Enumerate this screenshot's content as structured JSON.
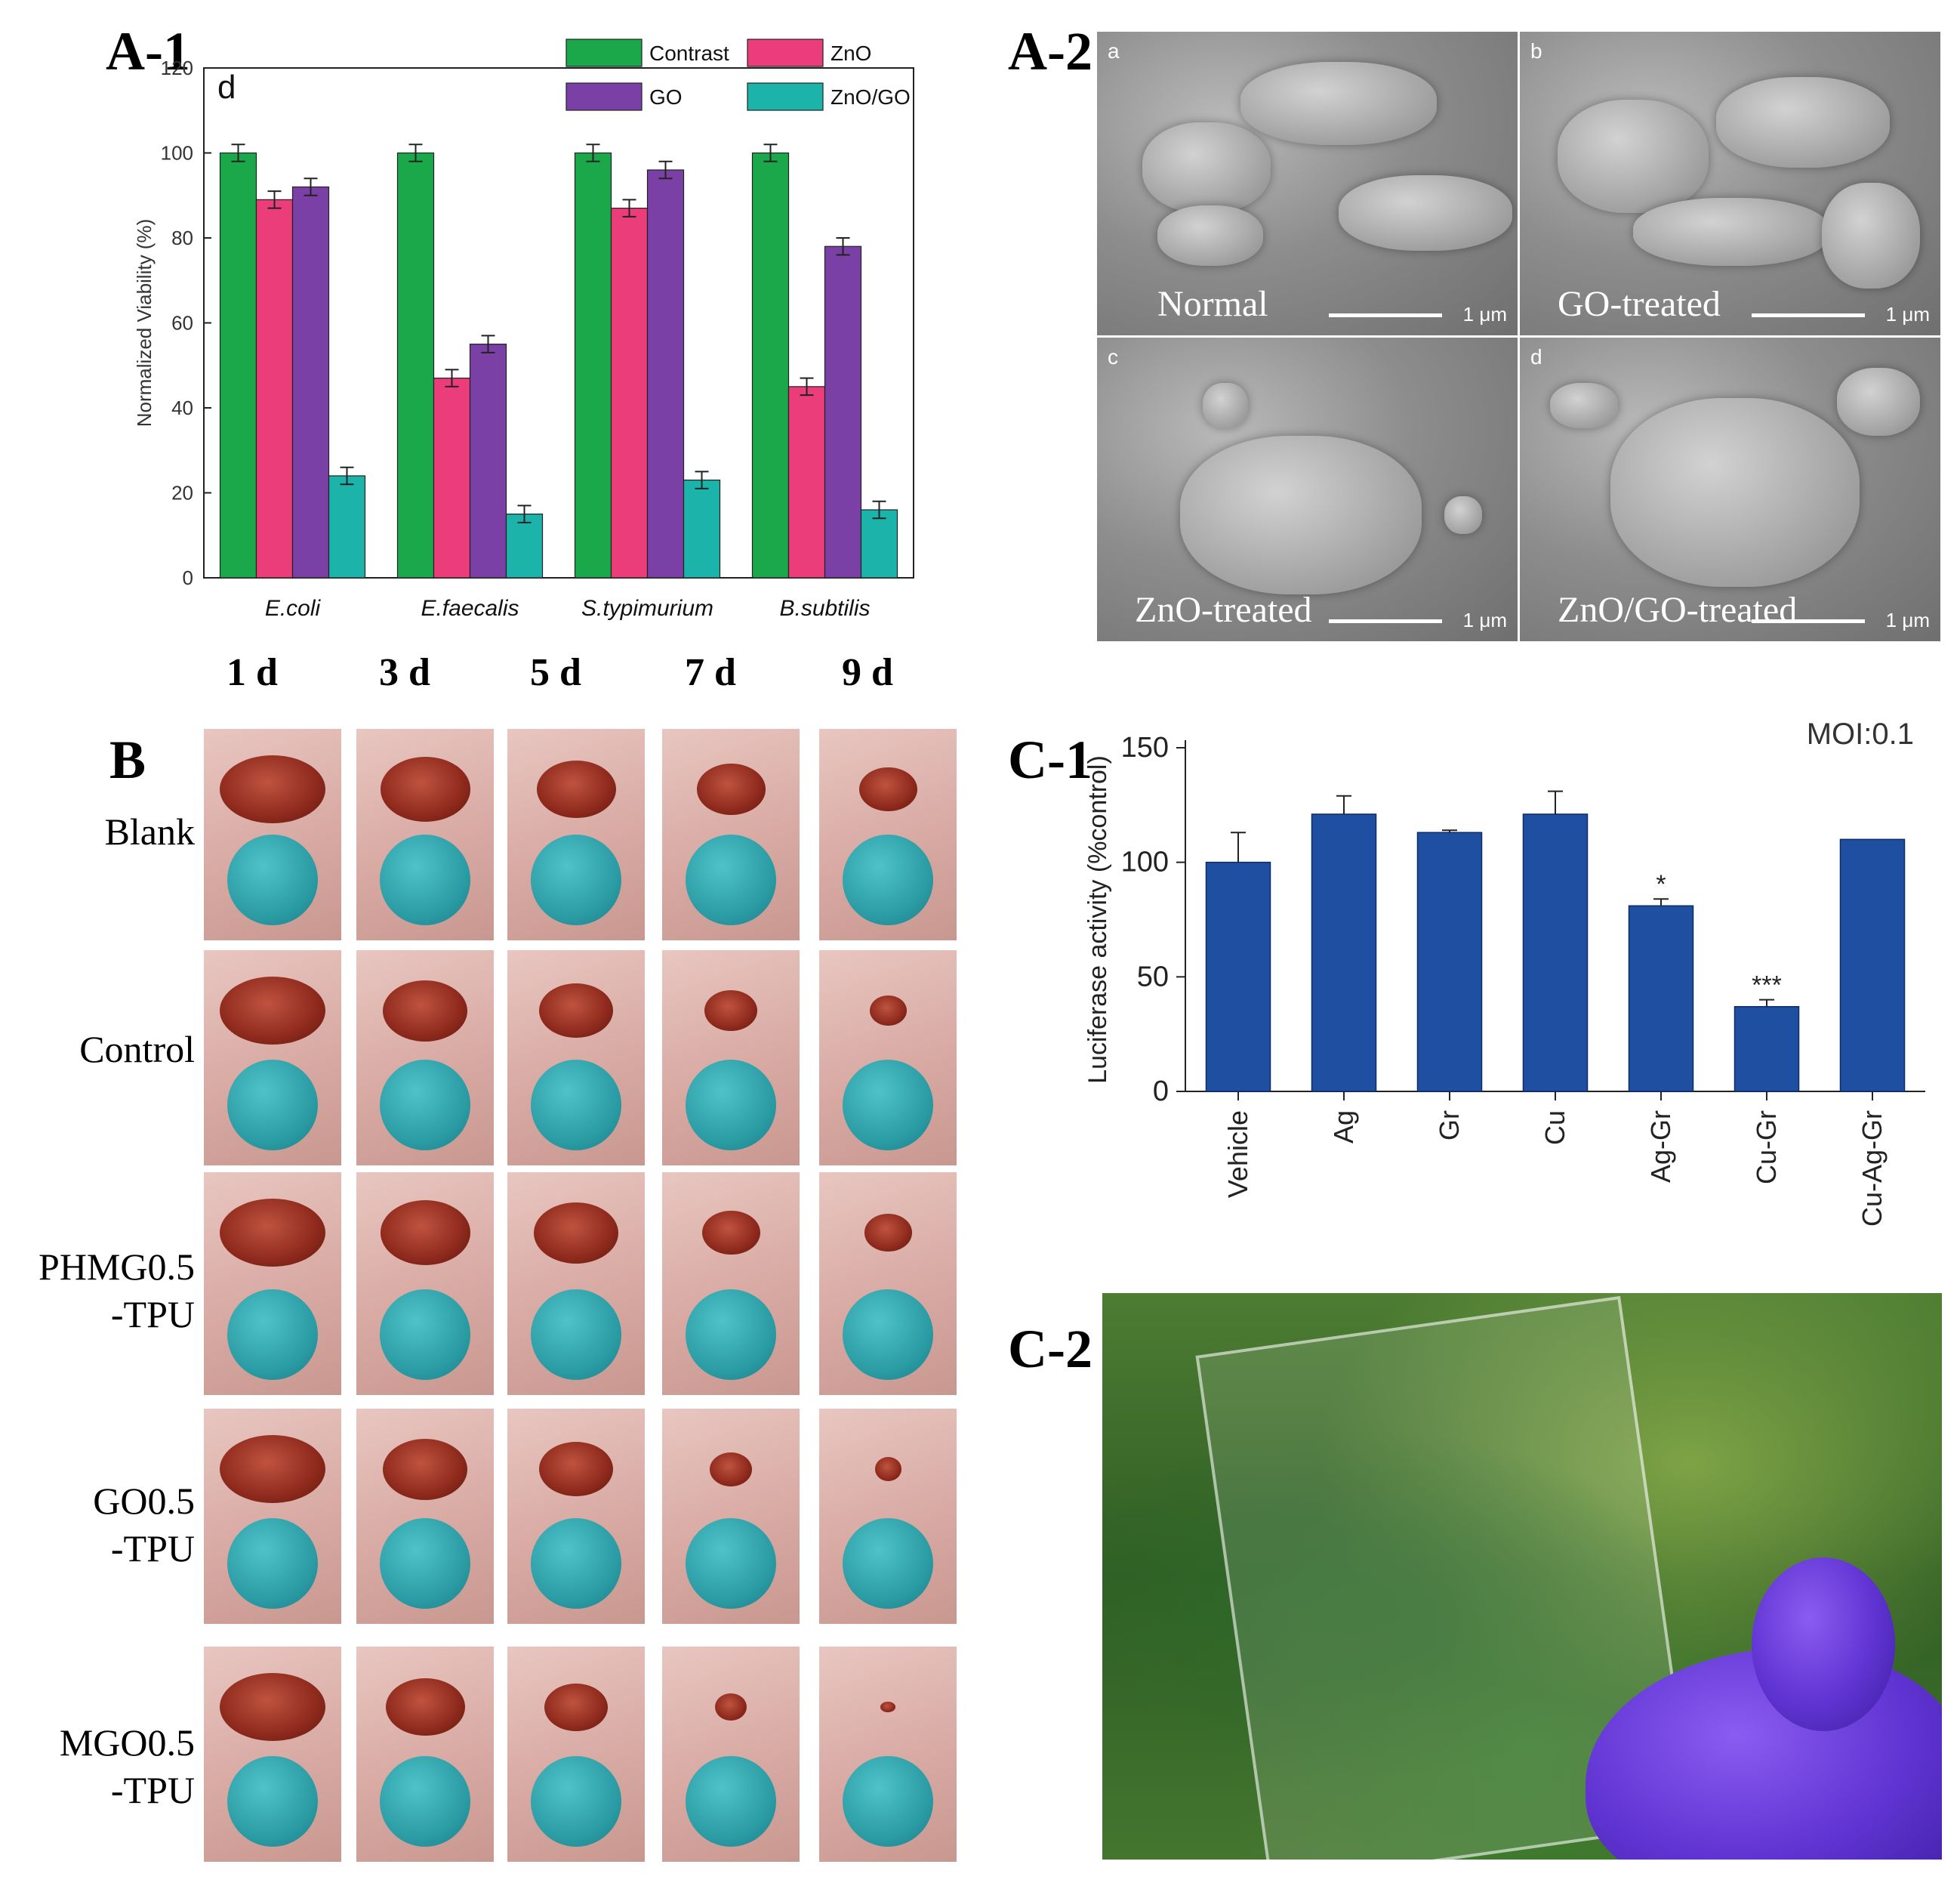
{
  "panels": {
    "a1": "A-1",
    "a2": "A-2",
    "b": "B",
    "c1": "C-1",
    "c2": "C-2"
  },
  "chart_data": [
    {
      "id": "A-1",
      "type": "bar",
      "subplot_letter": "d",
      "categories": [
        "E.coli",
        "E.faecalis",
        "S.typimurium",
        "B.subtilis"
      ],
      "series": [
        {
          "name": "Contrast",
          "color": "#1aa84a",
          "values": [
            100,
            100,
            100,
            100
          ],
          "errors": [
            2,
            2,
            2,
            2
          ]
        },
        {
          "name": "ZnO",
          "color": "#ec3d7b",
          "values": [
            89,
            47,
            87,
            45
          ],
          "errors": [
            2,
            2,
            2,
            2
          ]
        },
        {
          "name": "GO",
          "color": "#7a40a6",
          "values": [
            92,
            55,
            96,
            78
          ],
          "errors": [
            2,
            2,
            2,
            2
          ]
        },
        {
          "name": "ZnO/GO",
          "color": "#1cb3ab",
          "values": [
            24,
            15,
            23,
            16
          ],
          "errors": [
            2,
            2,
            2,
            2
          ]
        }
      ],
      "ylabel": "Normalized Viability (%)",
      "ylim": [
        0,
        120
      ],
      "yticks": [
        0,
        20,
        40,
        60,
        80,
        100,
        120
      ],
      "legend": "top-right"
    },
    {
      "id": "C-1",
      "type": "bar",
      "categories": [
        "Vehicle",
        "Ag",
        "Gr",
        "Cu",
        "Ag-Gr",
        "Cu-Gr",
        "Cu-Ag-Gr"
      ],
      "values": [
        100,
        121,
        113,
        121,
        81,
        37,
        110
      ],
      "errors": [
        13,
        8,
        1,
        10,
        3,
        3,
        0
      ],
      "significance": [
        "",
        "",
        "",
        "",
        "*",
        "***",
        ""
      ],
      "color": "#1f4fa0",
      "ylabel": "Luciferase activity (%control)",
      "ylim": [
        0,
        150
      ],
      "yticks": [
        0,
        50,
        100,
        150
      ],
      "annotation": "MOI:0.1"
    }
  ],
  "sem": {
    "tiles": [
      {
        "letter": "a",
        "caption": "Normal",
        "scale": "1 μm"
      },
      {
        "letter": "b",
        "caption": "GO-treated",
        "scale": "1 μm"
      },
      {
        "letter": "c",
        "caption": "ZnO-treated",
        "scale": "1 μm"
      },
      {
        "letter": "d",
        "caption": "ZnO/GO-treated",
        "scale": "1 μm"
      }
    ]
  },
  "wound": {
    "days": [
      "1 d",
      "3 d",
      "5 d",
      "7 d",
      "9 d"
    ],
    "groups": [
      {
        "line1": "Blank",
        "line2": ""
      },
      {
        "line1": "Control",
        "line2": ""
      },
      {
        "line1": "PHMG0.5",
        "line2": "-TPU"
      },
      {
        "line1": "GO0.5",
        "line2": "-TPU"
      },
      {
        "line1": "MGO0.5",
        "line2": "-TPU"
      }
    ],
    "wound_size": [
      [
        1.0,
        0.85,
        0.75,
        0.65,
        0.55
      ],
      [
        1.0,
        0.8,
        0.7,
        0.5,
        0.35
      ],
      [
        1.0,
        0.85,
        0.8,
        0.55,
        0.45
      ],
      [
        1.0,
        0.8,
        0.7,
        0.4,
        0.25
      ],
      [
        1.0,
        0.75,
        0.6,
        0.3,
        0.05
      ]
    ]
  }
}
